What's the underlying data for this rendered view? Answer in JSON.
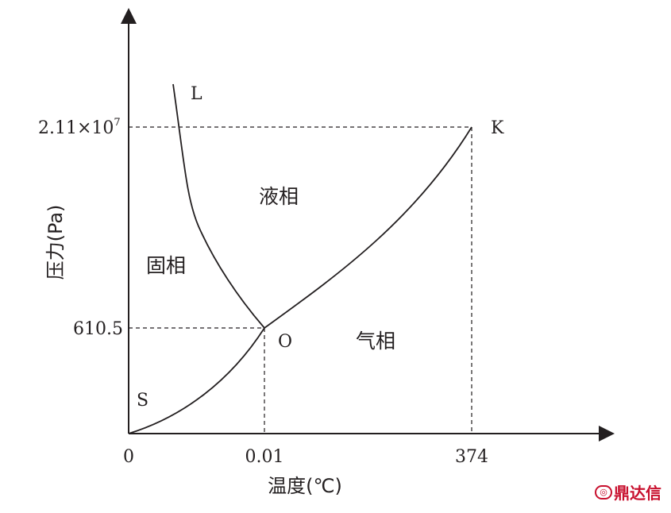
{
  "axes": {
    "y_label": "压力(Pa)",
    "x_label": "温度(℃)",
    "y_ticks": {
      "upper": "2.11×10",
      "upper_exp": "7",
      "lower": "610.5"
    },
    "x_ticks": [
      "0",
      "0.01",
      "374"
    ]
  },
  "points": {
    "L": "L",
    "K": "K",
    "O": "O",
    "S": "S"
  },
  "regions": {
    "solid": "固相",
    "liquid": "液相",
    "gas": "气相"
  },
  "watermark": {
    "text": "鼎达信",
    "icon": "ring-logo-icon"
  },
  "colors": {
    "ink": "#231f20",
    "watermark": "#c8102e"
  }
}
